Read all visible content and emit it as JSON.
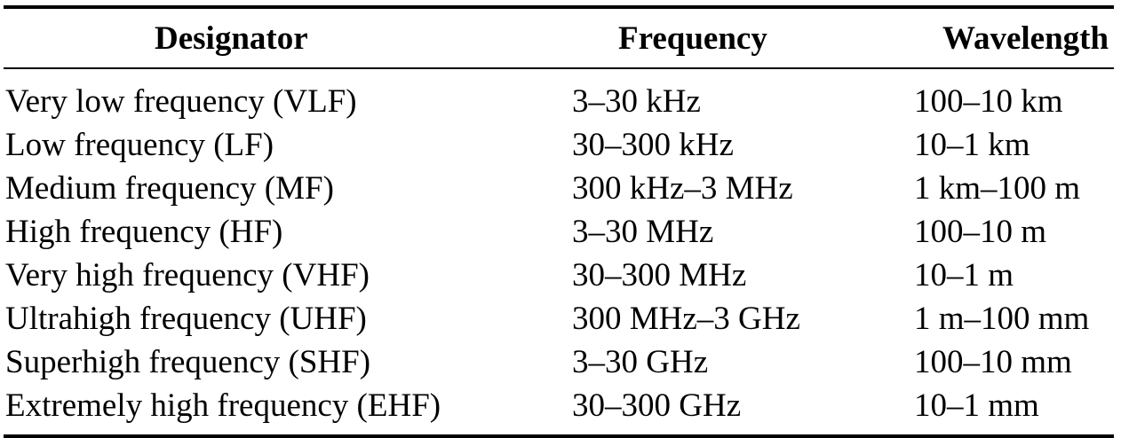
{
  "table": {
    "headers": {
      "designator": "Designator",
      "frequency": "Frequency",
      "wavelength": "Wavelength"
    },
    "rows": [
      {
        "designator": "Very low frequency (VLF)",
        "frequency": "3–30 kHz",
        "wavelength": "100–10 km"
      },
      {
        "designator": "Low frequency (LF)",
        "frequency": "30–300 kHz",
        "wavelength": "10–1 km"
      },
      {
        "designator": "Medium frequency (MF)",
        "frequency": "300 kHz–3 MHz",
        "wavelength": "1 km–100 m"
      },
      {
        "designator": "High frequency (HF)",
        "frequency": "3–30 MHz",
        "wavelength": "100–10 m"
      },
      {
        "designator": "Very high frequency (VHF)",
        "frequency": "30–300 MHz",
        "wavelength": "10–1 m"
      },
      {
        "designator": "Ultrahigh frequency (UHF)",
        "frequency": "300 MHz–3 GHz",
        "wavelength": "1 m–100 mm"
      },
      {
        "designator": "Superhigh frequency (SHF)",
        "frequency": "3–30 GHz",
        "wavelength": "100–10 mm"
      },
      {
        "designator": "Extremely high frequency (EHF)",
        "frequency": "30–300 GHz",
        "wavelength": "10–1 mm"
      }
    ]
  }
}
